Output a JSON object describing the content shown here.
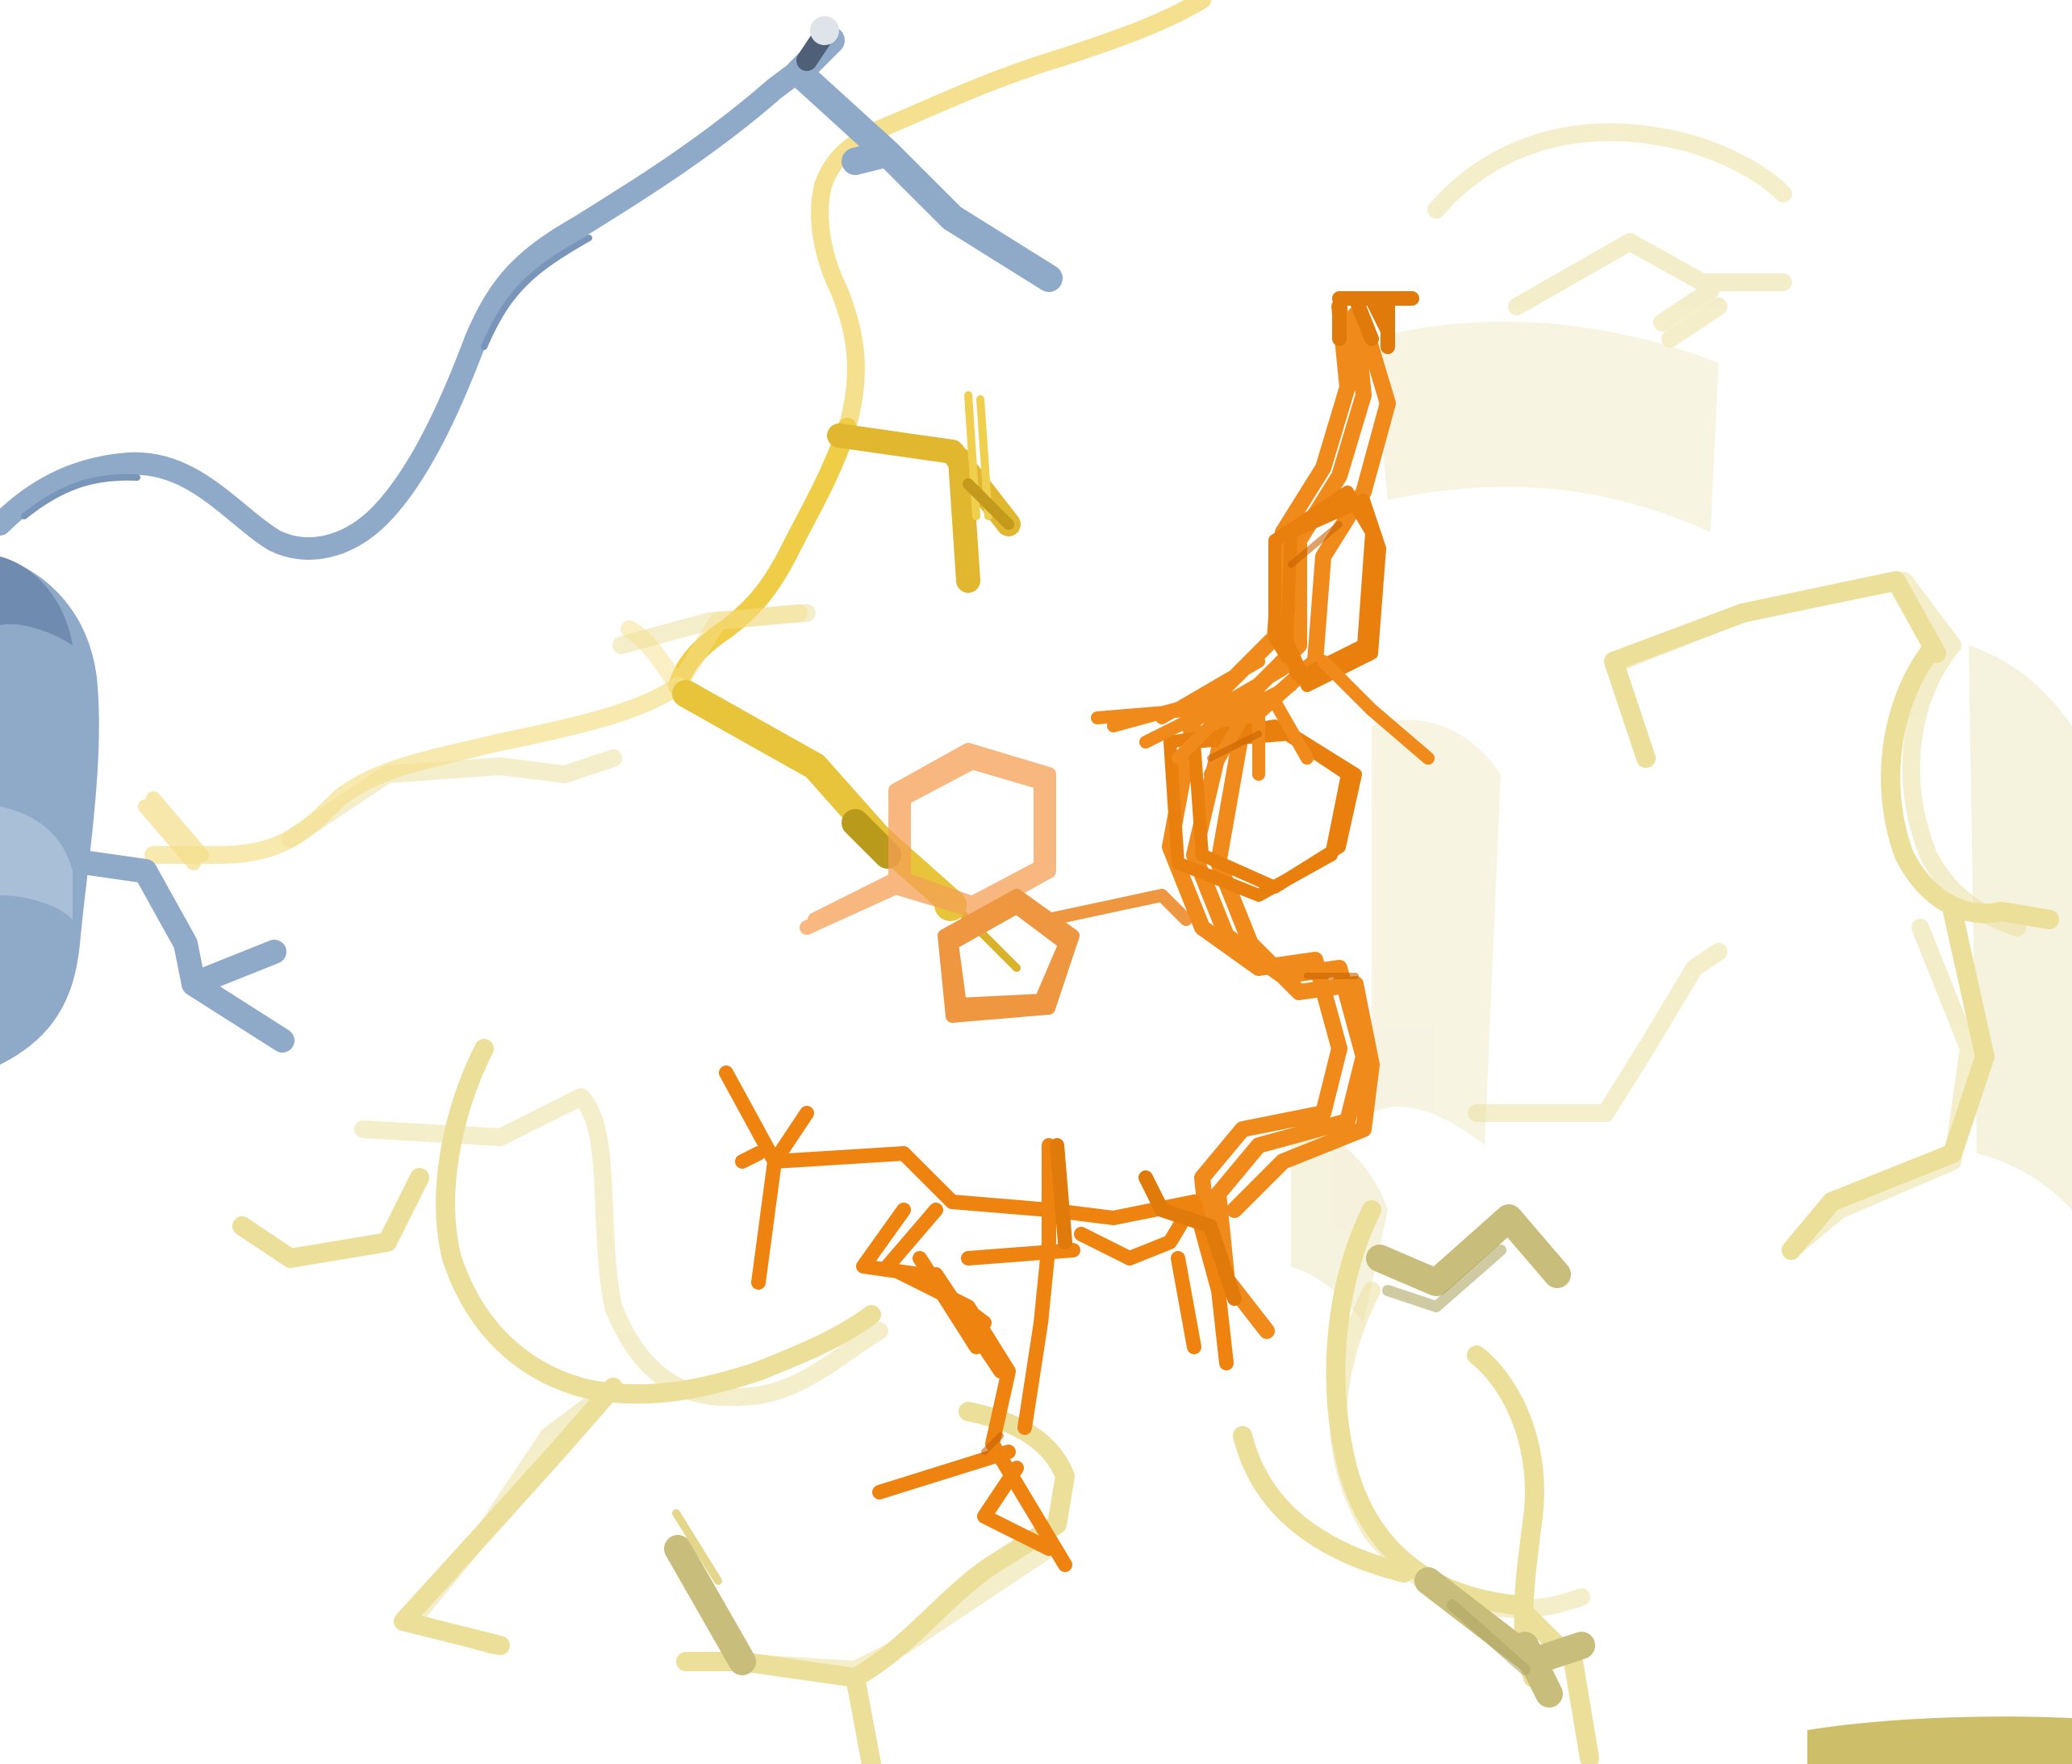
{
  "image": {
    "kind": "molecular-structure-render",
    "background": "#ffffff",
    "colors": {
      "ligand": "#f08a1a",
      "ligand_shade": "#d86e08",
      "ligand_faint": "#f5a055",
      "chain_a_ribbon": "#8fa9c9",
      "chain_a_shade": "#6f8bb0",
      "chain_b_gold": "#e6c23c",
      "chain_b_pale": "#eee2a0",
      "chain_b_olive": "#cfc587",
      "chain_b_dark": "#b6ad6c"
    },
    "elements": [
      "blue-protein-chain",
      "gold-protein-chain",
      "pale-protein-chains",
      "orange-ligand-ensemble"
    ]
  }
}
